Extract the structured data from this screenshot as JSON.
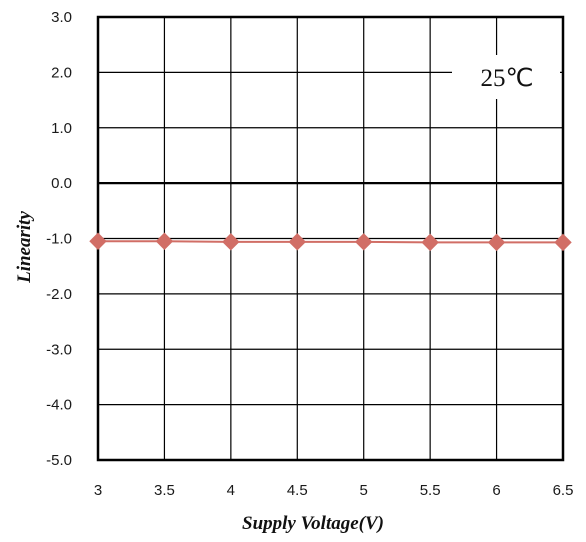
{
  "chart_data": {
    "type": "line",
    "title": "",
    "xlabel": "Supply Voltage(V)",
    "ylabel": "Linearity",
    "x": [
      3,
      3.5,
      4,
      4.5,
      5,
      5.5,
      6,
      6.5
    ],
    "x_tick_labels": [
      "3",
      "3.5",
      "4",
      "4.5",
      "5",
      "5.5",
      "6",
      "6.5"
    ],
    "y_tick_labels": [
      "3.0",
      "2.0",
      "1.0",
      "0.0",
      "-1.0",
      "-2.0",
      "-3.0",
      "-4.0",
      "-5.0"
    ],
    "xlim": [
      3,
      6.5
    ],
    "ylim": [
      -5,
      3
    ],
    "grid": true,
    "legend": "none",
    "annotation": "25℃",
    "series": [
      {
        "values": [
          -1.05,
          -1.05,
          -1.06,
          -1.06,
          -1.06,
          -1.07,
          -1.07,
          -1.07
        ],
        "color": "#d16e66",
        "marker": "diamond"
      }
    ],
    "colors": {
      "series": "#d16e66",
      "grid": "#000000",
      "axis": "#000000"
    }
  }
}
